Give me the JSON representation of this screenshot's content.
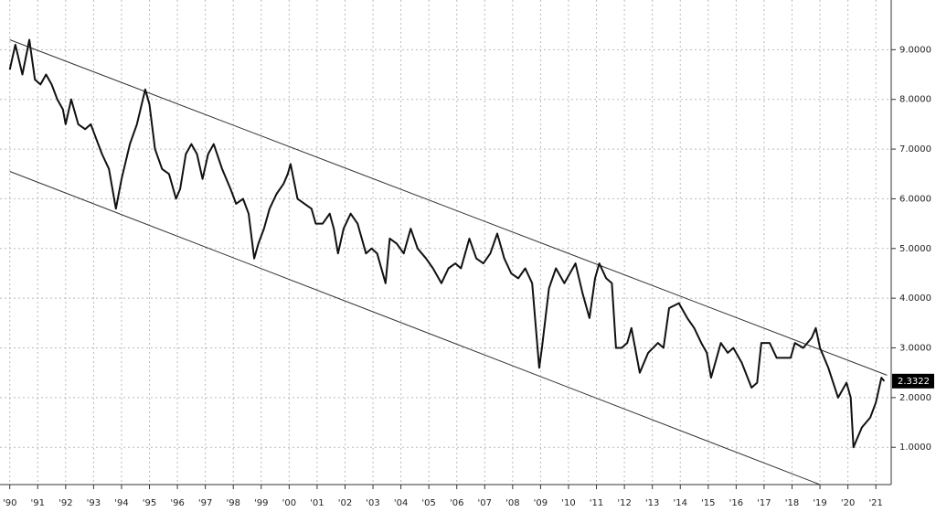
{
  "chart_data": {
    "type": "line",
    "series": [
      {
        "color": "#111111",
        "x": [
          1990.0,
          1990.2,
          1990.45,
          1990.7,
          1990.9,
          1991.1,
          1991.3,
          1991.5,
          1991.7,
          1991.9,
          1992.0,
          1992.2,
          1992.45,
          1992.7,
          1992.9,
          1993.1,
          1993.3,
          1993.55,
          1993.8,
          1994.0,
          1994.3,
          1994.55,
          1994.85,
          1995.0,
          1995.2,
          1995.45,
          1995.7,
          1995.95,
          1996.1,
          1996.3,
          1996.5,
          1996.7,
          1996.9,
          1997.1,
          1997.3,
          1997.6,
          1997.9,
          1998.1,
          1998.35,
          1998.55,
          1998.75,
          1998.9,
          1999.1,
          1999.3,
          1999.55,
          1999.8,
          1999.95,
          2000.05,
          2000.3,
          2000.55,
          2000.8,
          2000.95,
          2001.2,
          2001.45,
          2001.6,
          2001.75,
          2001.95,
          2002.2,
          2002.45,
          2002.75,
          2002.95,
          2003.15,
          2003.45,
          2003.6,
          2003.85,
          2004.1,
          2004.35,
          2004.6,
          2004.9,
          2005.15,
          2005.45,
          2005.7,
          2005.95,
          2006.15,
          2006.45,
          2006.7,
          2006.95,
          2007.2,
          2007.45,
          2007.7,
          2007.95,
          2008.2,
          2008.45,
          2008.7,
          2008.95,
          2009.05,
          2009.3,
          2009.55,
          2009.85,
          2010.25,
          2010.5,
          2010.75,
          2010.95,
          2011.1,
          2011.35,
          2011.55,
          2011.7,
          2011.9,
          2012.1,
          2012.25,
          2012.55,
          2012.85,
          2013.2,
          2013.4,
          2013.6,
          2013.95,
          2014.25,
          2014.5,
          2014.75,
          2014.95,
          2015.1,
          2015.45,
          2015.7,
          2015.9,
          2016.2,
          2016.55,
          2016.75,
          2016.9,
          2017.2,
          2017.45,
          2017.7,
          2017.95,
          2018.1,
          2018.4,
          2018.7,
          2018.85,
          2019.0,
          2019.3,
          2019.65,
          2019.95,
          2020.1,
          2020.2,
          2020.5,
          2020.8,
          2021.0,
          2021.2,
          2021.3
        ],
        "values": [
          8.6,
          9.1,
          8.5,
          9.2,
          8.4,
          8.3,
          8.5,
          8.3,
          8.0,
          7.8,
          7.5,
          8.0,
          7.5,
          7.4,
          7.5,
          7.2,
          6.9,
          6.6,
          5.8,
          6.4,
          7.1,
          7.5,
          8.2,
          7.9,
          7.0,
          6.6,
          6.5,
          6.0,
          6.2,
          6.9,
          7.1,
          6.9,
          6.4,
          6.9,
          7.1,
          6.6,
          6.2,
          5.9,
          6.0,
          5.7,
          4.8,
          5.1,
          5.4,
          5.8,
          6.1,
          6.3,
          6.5,
          6.7,
          6.0,
          5.9,
          5.8,
          5.5,
          5.5,
          5.7,
          5.4,
          4.9,
          5.4,
          5.7,
          5.5,
          4.9,
          5.0,
          4.9,
          4.3,
          5.2,
          5.1,
          4.9,
          5.4,
          5.0,
          4.8,
          4.6,
          4.3,
          4.6,
          4.7,
          4.6,
          5.2,
          4.8,
          4.7,
          4.9,
          5.3,
          4.8,
          4.5,
          4.4,
          4.6,
          4.3,
          2.6,
          3.0,
          4.2,
          4.6,
          4.3,
          4.7,
          4.1,
          3.6,
          4.4,
          4.7,
          4.4,
          4.3,
          3.0,
          3.0,
          3.1,
          3.4,
          2.5,
          2.9,
          3.1,
          3.0,
          3.8,
          3.9,
          3.6,
          3.4,
          3.1,
          2.9,
          2.4,
          3.1,
          2.9,
          3.0,
          2.7,
          2.2,
          2.3,
          3.1,
          3.1,
          2.8,
          2.8,
          2.8,
          3.1,
          3.0,
          3.2,
          3.4,
          3.0,
          2.6,
          2.0,
          2.3,
          2.0,
          1.0,
          1.4,
          1.6,
          1.9,
          2.4,
          2.33
        ]
      }
    ],
    "trend_lines": [
      {
        "color": "#333333",
        "x": [
          1990.0,
          2021.4
        ],
        "values": [
          9.2,
          2.45
        ]
      },
      {
        "color": "#333333",
        "x": [
          1990.0,
          2019.0
        ],
        "values": [
          6.55,
          0.25
        ]
      }
    ],
    "last_value": 2.3322,
    "xlim": [
      1989.65,
      2021.55
    ],
    "xticks": [
      {
        "value": 1990,
        "label": "'90"
      },
      {
        "value": 1991,
        "label": "'91"
      },
      {
        "value": 1992,
        "label": "'92"
      },
      {
        "value": 1993,
        "label": "'93"
      },
      {
        "value": 1994,
        "label": "'94"
      },
      {
        "value": 1995,
        "label": "'95"
      },
      {
        "value": 1996,
        "label": "'96"
      },
      {
        "value": 1997,
        "label": "'97"
      },
      {
        "value": 1998,
        "label": "'98"
      },
      {
        "value": 1999,
        "label": "'99"
      },
      {
        "value": 2000,
        "label": "'00"
      },
      {
        "value": 2001,
        "label": "'01"
      },
      {
        "value": 2002,
        "label": "'02"
      },
      {
        "value": 2003,
        "label": "'03"
      },
      {
        "value": 2004,
        "label": "'04"
      },
      {
        "value": 2005,
        "label": "'05"
      },
      {
        "value": 2006,
        "label": "'06"
      },
      {
        "value": 2007,
        "label": "'07"
      },
      {
        "value": 2008,
        "label": "'08"
      },
      {
        "value": 2009,
        "label": "'09"
      },
      {
        "value": 2010,
        "label": "'10"
      },
      {
        "value": 2011,
        "label": "'11"
      },
      {
        "value": 2012,
        "label": "'12"
      },
      {
        "value": 2013,
        "label": "'13"
      },
      {
        "value": 2014,
        "label": "'14"
      },
      {
        "value": 2015,
        "label": "'15"
      },
      {
        "value": 2016,
        "label": "'16"
      },
      {
        "value": 2017,
        "label": "'17"
      },
      {
        "value": 2018,
        "label": "'18"
      },
      {
        "value": 2019,
        "label": "'19"
      },
      {
        "value": 2020,
        "label": "'20"
      },
      {
        "value": 2021,
        "label": "'21"
      }
    ],
    "ylim": [
      0.25,
      10
    ],
    "yticks": [
      {
        "value": 1,
        "label": "1.0000"
      },
      {
        "value": 2,
        "label": "2.0000"
      },
      {
        "value": 3,
        "label": "3.0000"
      },
      {
        "value": 4,
        "label": "4.0000"
      },
      {
        "value": 5,
        "label": "5.0000"
      },
      {
        "value": 6,
        "label": "6.0000"
      },
      {
        "value": 7,
        "label": "7.0000"
      },
      {
        "value": 8,
        "label": "8.0000"
      },
      {
        "value": 9,
        "label": "9.0000"
      }
    ],
    "grid": true
  }
}
